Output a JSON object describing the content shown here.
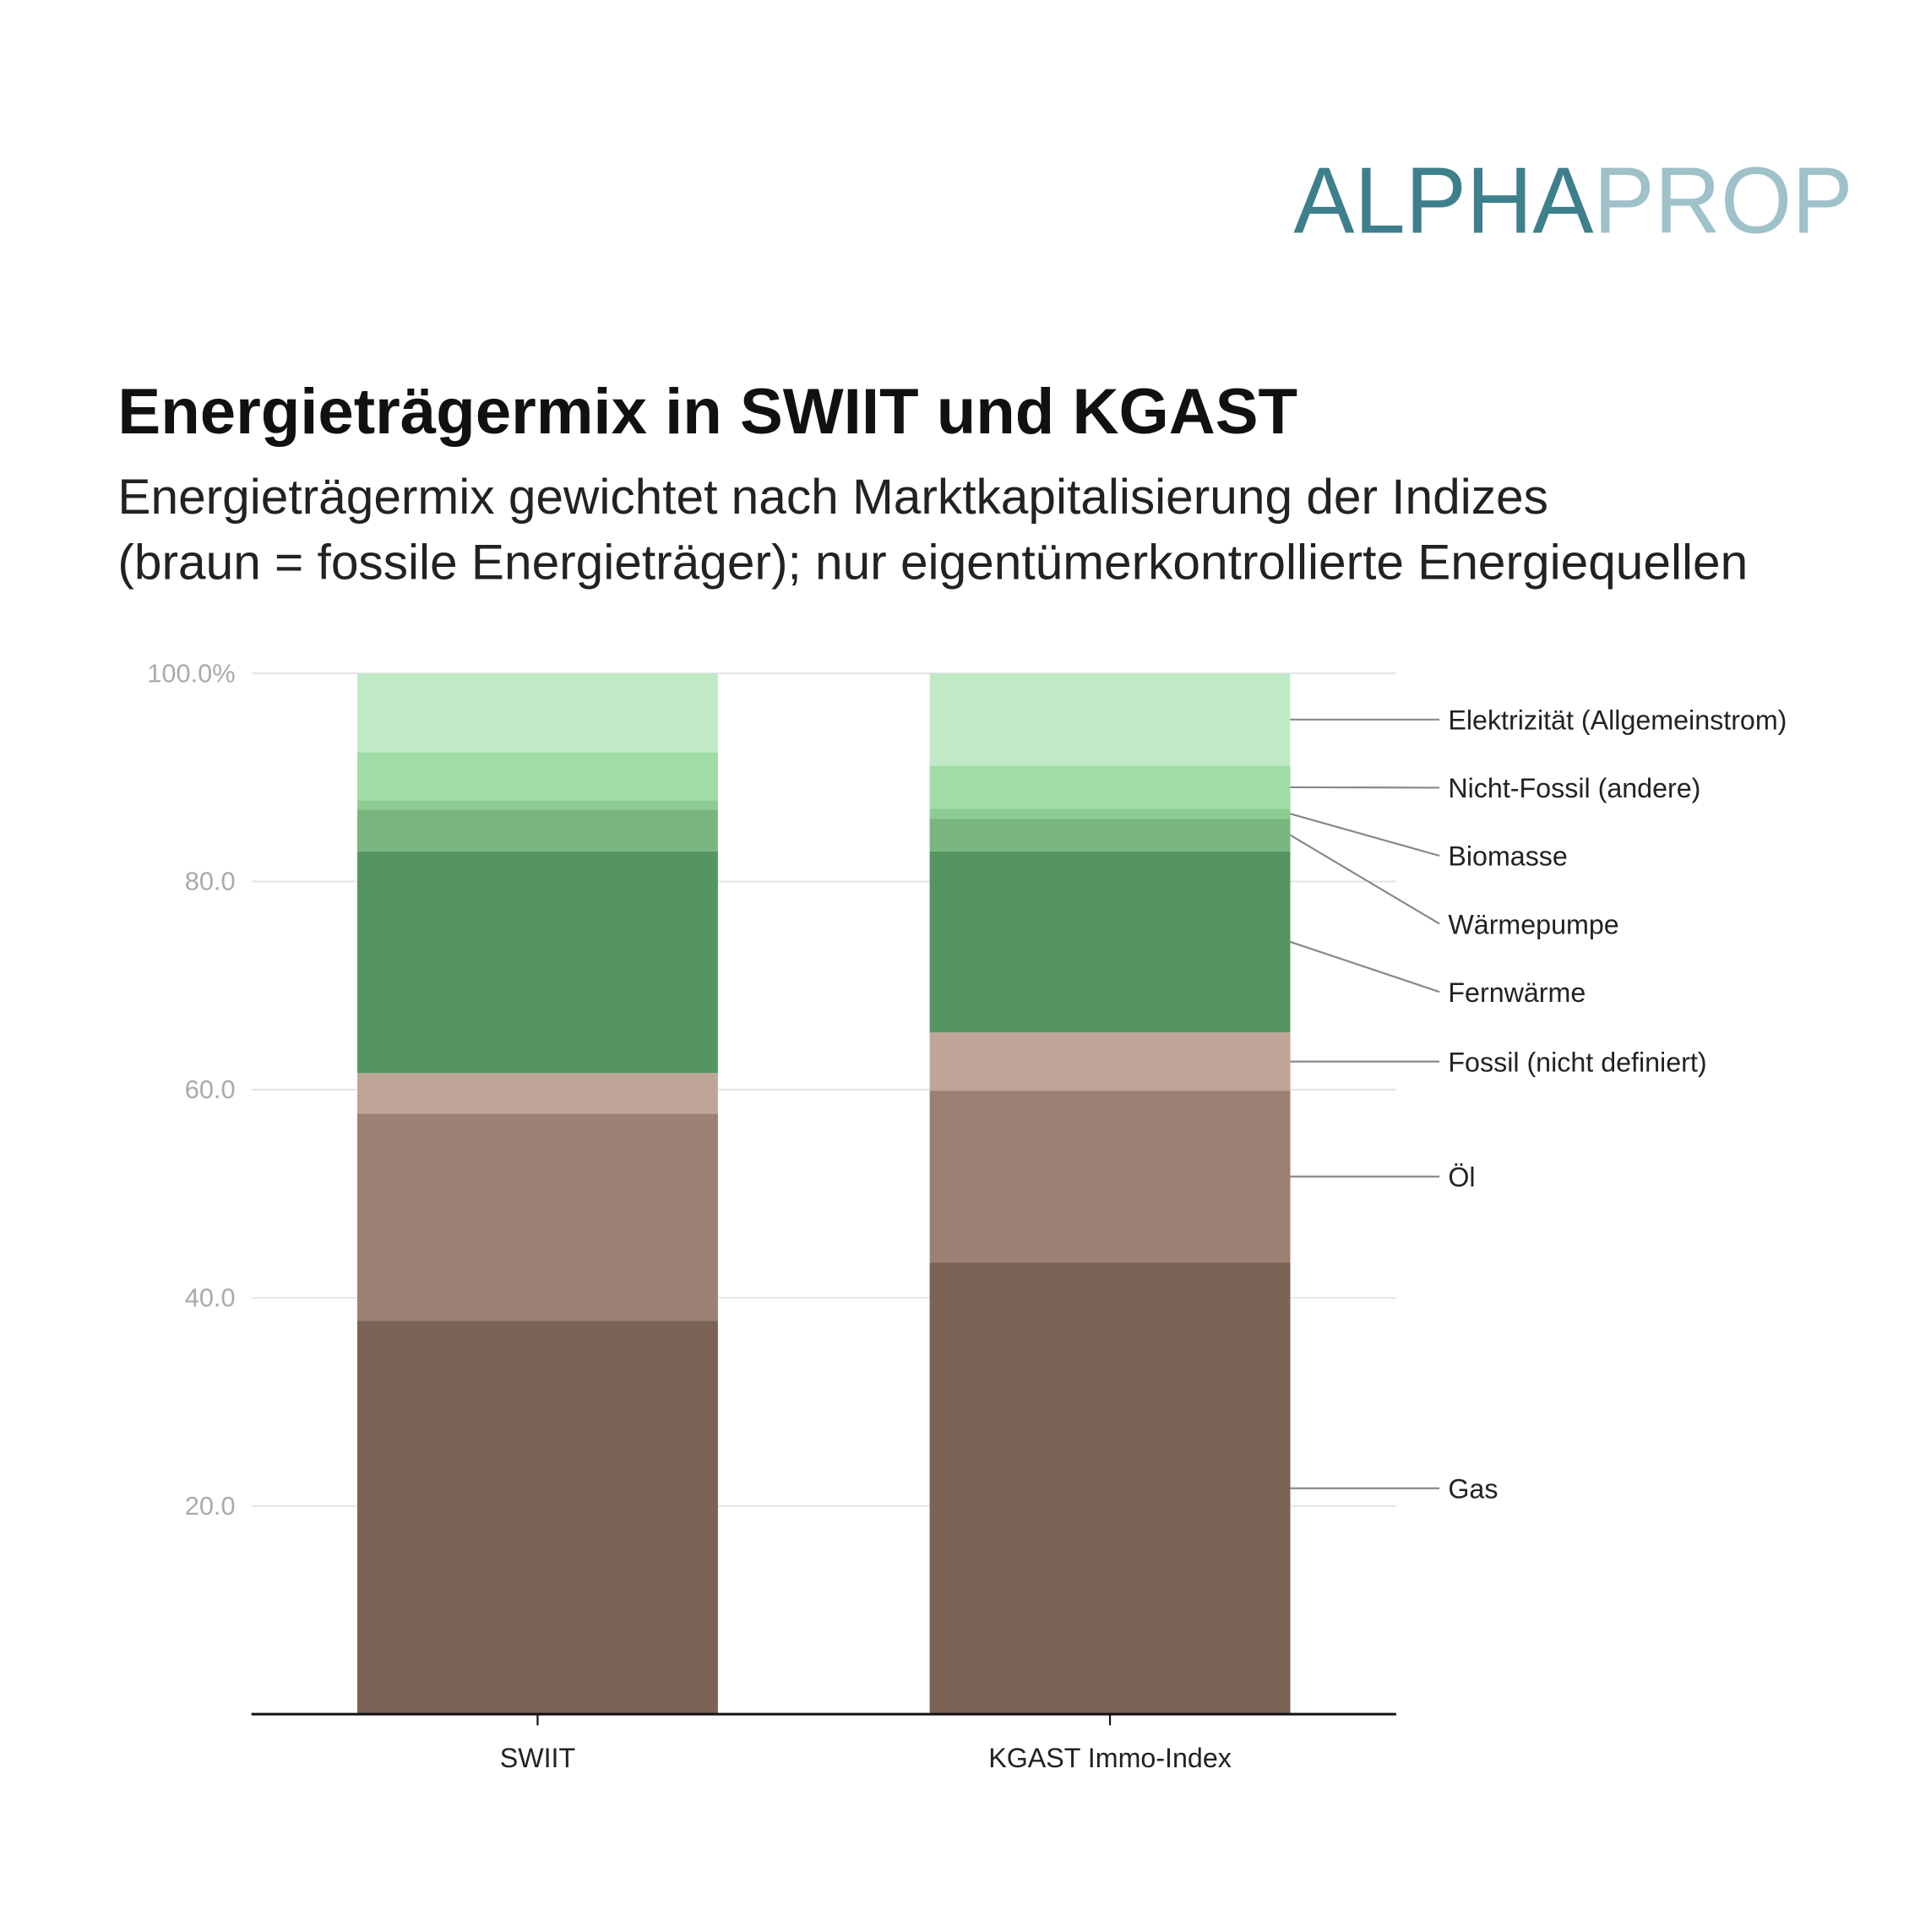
{
  "logo": {
    "parts": [
      "ALPHA",
      "PROP"
    ],
    "colors": [
      "#3e7f8c",
      "#9fc1c9"
    ]
  },
  "chart_data": {
    "type": "stacked-bar",
    "title": "Energieträgermix in SWIIT und KGAST",
    "subtitle": [
      "Energieträgermix gewichtet nach Marktkapitalisierung der Indizes",
      "(braun = fossile Energieträger); nur eigentümerkontrollierte Energiequellen"
    ],
    "categories": [
      "SWIIT",
      "KGAST Immo-Index"
    ],
    "series": [
      {
        "name": "Gas",
        "color": "#7a6256",
        "values": [
          37.8,
          43.4
        ]
      },
      {
        "name": "Öl",
        "color": "#9b8073",
        "values": [
          19.9,
          16.5
        ]
      },
      {
        "name": "Fossil (nicht definiert)",
        "color": "#bea597",
        "values": [
          3.9,
          5.6
        ]
      },
      {
        "name": "Fernwärme",
        "color": "#559561",
        "values": [
          21.3,
          17.4
        ]
      },
      {
        "name": "Wärmepumpe",
        "color": "#79b67f",
        "values": [
          4.0,
          3.1
        ]
      },
      {
        "name": "Biomasse",
        "color": "#8ccb92",
        "values": [
          0.9,
          1.0
        ]
      },
      {
        "name": "Nicht-Fossil (andere)",
        "color": "#a0dca5",
        "values": [
          4.6,
          4.1
        ]
      },
      {
        "name": "Elektrizität (Allgemeinstrom)",
        "color": "#c0eac6",
        "values": [
          7.6,
          8.9
        ]
      }
    ],
    "ylim": [
      0,
      100
    ],
    "yticks": [
      {
        "value": 20,
        "label": "20.0"
      },
      {
        "value": 40,
        "label": "40.0"
      },
      {
        "value": 60,
        "label": "60.0"
      },
      {
        "value": 80,
        "label": "80.0"
      },
      {
        "value": 100,
        "label": "100.0%"
      }
    ],
    "grid": true
  }
}
